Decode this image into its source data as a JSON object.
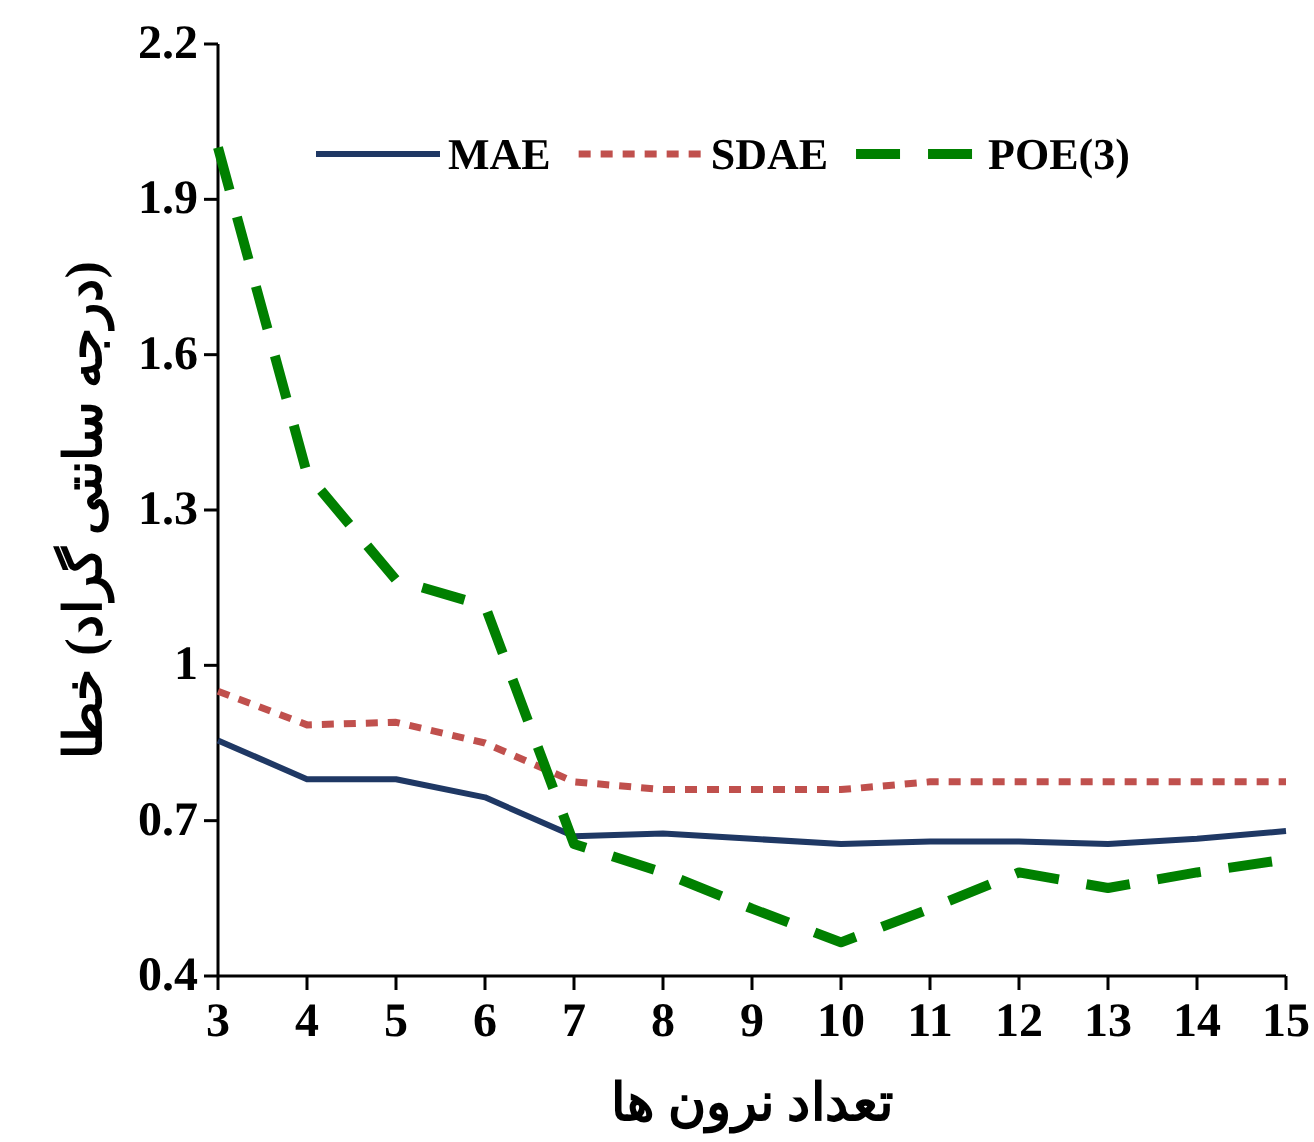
{
  "chart_data": {
    "type": "line",
    "xlabel": "تعداد نرون ها",
    "ylabel": "(درجه سانتی گراد) خطا",
    "x": [
      3,
      4,
      5,
      6,
      7,
      8,
      9,
      10,
      11,
      12,
      13,
      14,
      15
    ],
    "series": [
      {
        "name": "MAE",
        "color": "#1f3864",
        "line_style": "solid",
        "values": [
          0.855,
          0.78,
          0.78,
          0.745,
          0.67,
          0.675,
          0.665,
          0.655,
          0.66,
          0.66,
          0.655,
          0.665,
          0.68
        ]
      },
      {
        "name": "SDAE",
        "color": "#c0504d",
        "line_style": "dotted",
        "values": [
          0.95,
          0.885,
          0.89,
          0.85,
          0.775,
          0.76,
          0.76,
          0.76,
          0.775,
          0.775,
          0.775,
          0.775,
          0.775
        ]
      },
      {
        "name": "POE(3)",
        "color": "#008000",
        "line_style": "dashed",
        "values": [
          2.0,
          1.37,
          1.165,
          1.115,
          0.655,
          0.6,
          0.53,
          0.465,
          0.53,
          0.6,
          0.57,
          0.6,
          0.625
        ]
      }
    ],
    "xlim": [
      3,
      15
    ],
    "xticks": [
      3,
      4,
      5,
      6,
      7,
      8,
      9,
      10,
      11,
      12,
      13,
      14,
      15
    ],
    "ylim": [
      0.4,
      2.2
    ],
    "yticks": [
      0.4,
      0.7,
      1,
      1.3,
      1.6,
      1.9,
      2.2
    ],
    "grid": false,
    "legend": "top",
    "marker": "none"
  }
}
